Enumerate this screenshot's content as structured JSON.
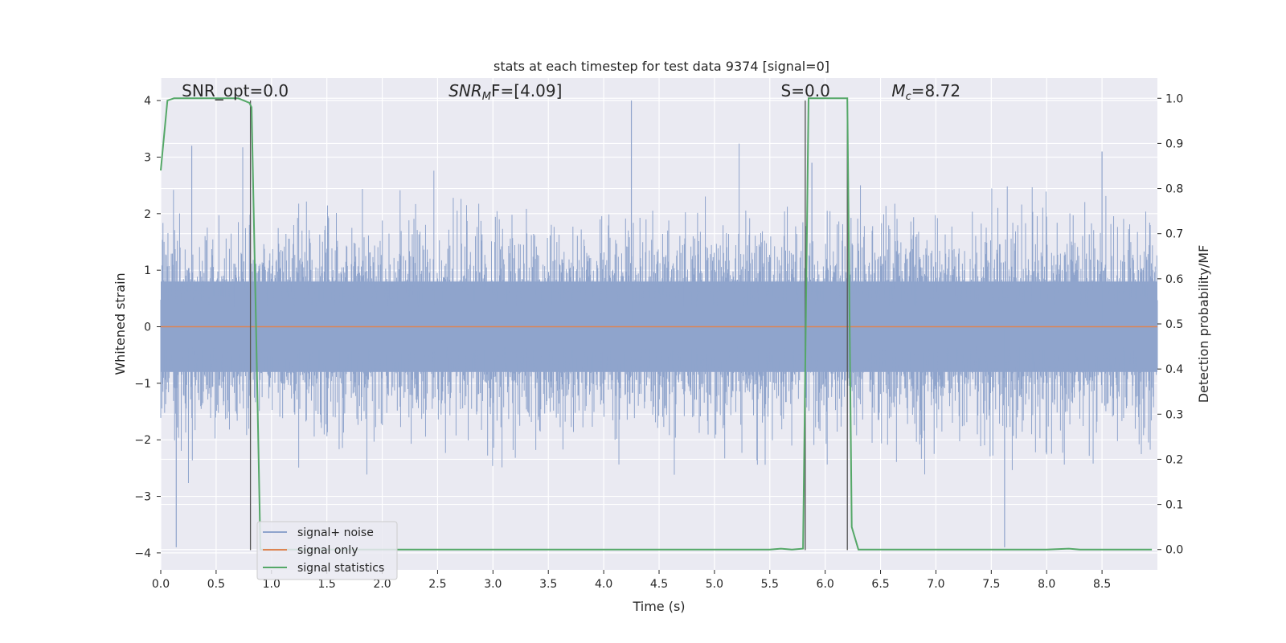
{
  "chart_data": {
    "type": "line",
    "title": "stats at each timestep for test data 9374 [signal=0]",
    "xlabel": "Time (s)",
    "ylabel": "Whitened strain",
    "ylabel_right": "Detection probability/MF",
    "xlim": [
      0.0,
      9.0
    ],
    "ylim": [
      -4.3,
      4.4
    ],
    "ylim_right": [
      -0.045,
      1.045
    ],
    "x_ticks": [
      0.0,
      0.5,
      1.0,
      1.5,
      2.0,
      2.5,
      3.0,
      3.5,
      4.0,
      4.5,
      5.0,
      5.5,
      6.0,
      6.5,
      7.0,
      7.5,
      8.0,
      8.5
    ],
    "x_tick_labels": [
      "0.0",
      "0.5",
      "1.0",
      "1.5",
      "2.0",
      "2.5",
      "3.0",
      "3.5",
      "4.0",
      "4.5",
      "5.0",
      "5.5",
      "6.0",
      "6.5",
      "7.0",
      "7.5",
      "8.0",
      "8.5"
    ],
    "y_ticks": [
      -4,
      -3,
      -2,
      -1,
      0,
      1,
      2,
      3,
      4
    ],
    "y_tick_labels": [
      "−4",
      "−3",
      "−2",
      "−1",
      "0",
      "1",
      "2",
      "3",
      "4"
    ],
    "y_ticks_right": [
      0.0,
      0.1,
      0.2,
      0.3,
      0.4,
      0.5,
      0.6,
      0.7,
      0.8,
      0.9,
      1.0
    ],
    "y_tick_labels_right": [
      "0.0",
      "0.1",
      "0.2",
      "0.3",
      "0.4",
      "0.5",
      "0.6",
      "0.7",
      "0.8",
      "0.9",
      "1.0"
    ],
    "grid": true,
    "legend_position": "lower-left",
    "annotations": [
      {
        "text": "SNR_opt=0.0",
        "x": 0.19,
        "y": 4.1
      },
      {
        "text": "SNR",
        "sub": "M",
        "tail": "F=[4.09]",
        "x": 2.6,
        "y": 4.1
      },
      {
        "text": "S=0.0",
        "x": 5.6,
        "y": 4.1
      },
      {
        "text": "M",
        "sub": "c",
        "tail": "=8.72",
        "x": 6.6,
        "y": 4.1
      }
    ],
    "vlines": [
      {
        "x": 0.81,
        "ymin": -3.95,
        "ymax": 4.0
      },
      {
        "x": 5.82,
        "ymin": -3.95,
        "ymax": 4.0
      },
      {
        "x": 6.2,
        "ymin": -3.95,
        "ymax": 4.0
      }
    ],
    "series": [
      {
        "name": "signal+ noise",
        "color": "#8fa4cc",
        "kind": "noise",
        "t_range": [
          0.0,
          9.0
        ],
        "n_samples": 1800,
        "band": [
          -0.8,
          0.8
        ],
        "peak_max": 4.0,
        "peak_min": -3.9
      },
      {
        "name": "signal only",
        "color": "#dd8452",
        "kind": "flat",
        "x": [
          0.0,
          9.0
        ],
        "y": [
          0.0,
          0.0
        ]
      },
      {
        "name": "signal statistics",
        "color": "#55a868",
        "axis": "right",
        "x": [
          0.0,
          0.06,
          0.12,
          0.3,
          0.5,
          0.7,
          0.8,
          0.82,
          0.86,
          0.9,
          1.0,
          2.0,
          3.0,
          4.0,
          5.0,
          5.5,
          5.6,
          5.7,
          5.8,
          5.85,
          5.9,
          6.0,
          6.1,
          6.2,
          6.24,
          6.3,
          6.4,
          7.0,
          8.0,
          8.2,
          8.3,
          8.5,
          8.95
        ],
        "y": [
          0.84,
          0.995,
          1.0,
          1.0,
          1.0,
          1.0,
          0.99,
          0.98,
          0.5,
          0.0,
          0.0,
          0.0,
          0.0,
          0.0,
          0.0,
          0.0,
          0.002,
          0.0,
          0.002,
          1.0,
          1.0,
          1.0,
          1.0,
          1.0,
          0.05,
          0.0,
          0.0,
          0.0,
          0.0,
          0.002,
          0.0,
          0.0,
          0.0
        ]
      }
    ]
  }
}
